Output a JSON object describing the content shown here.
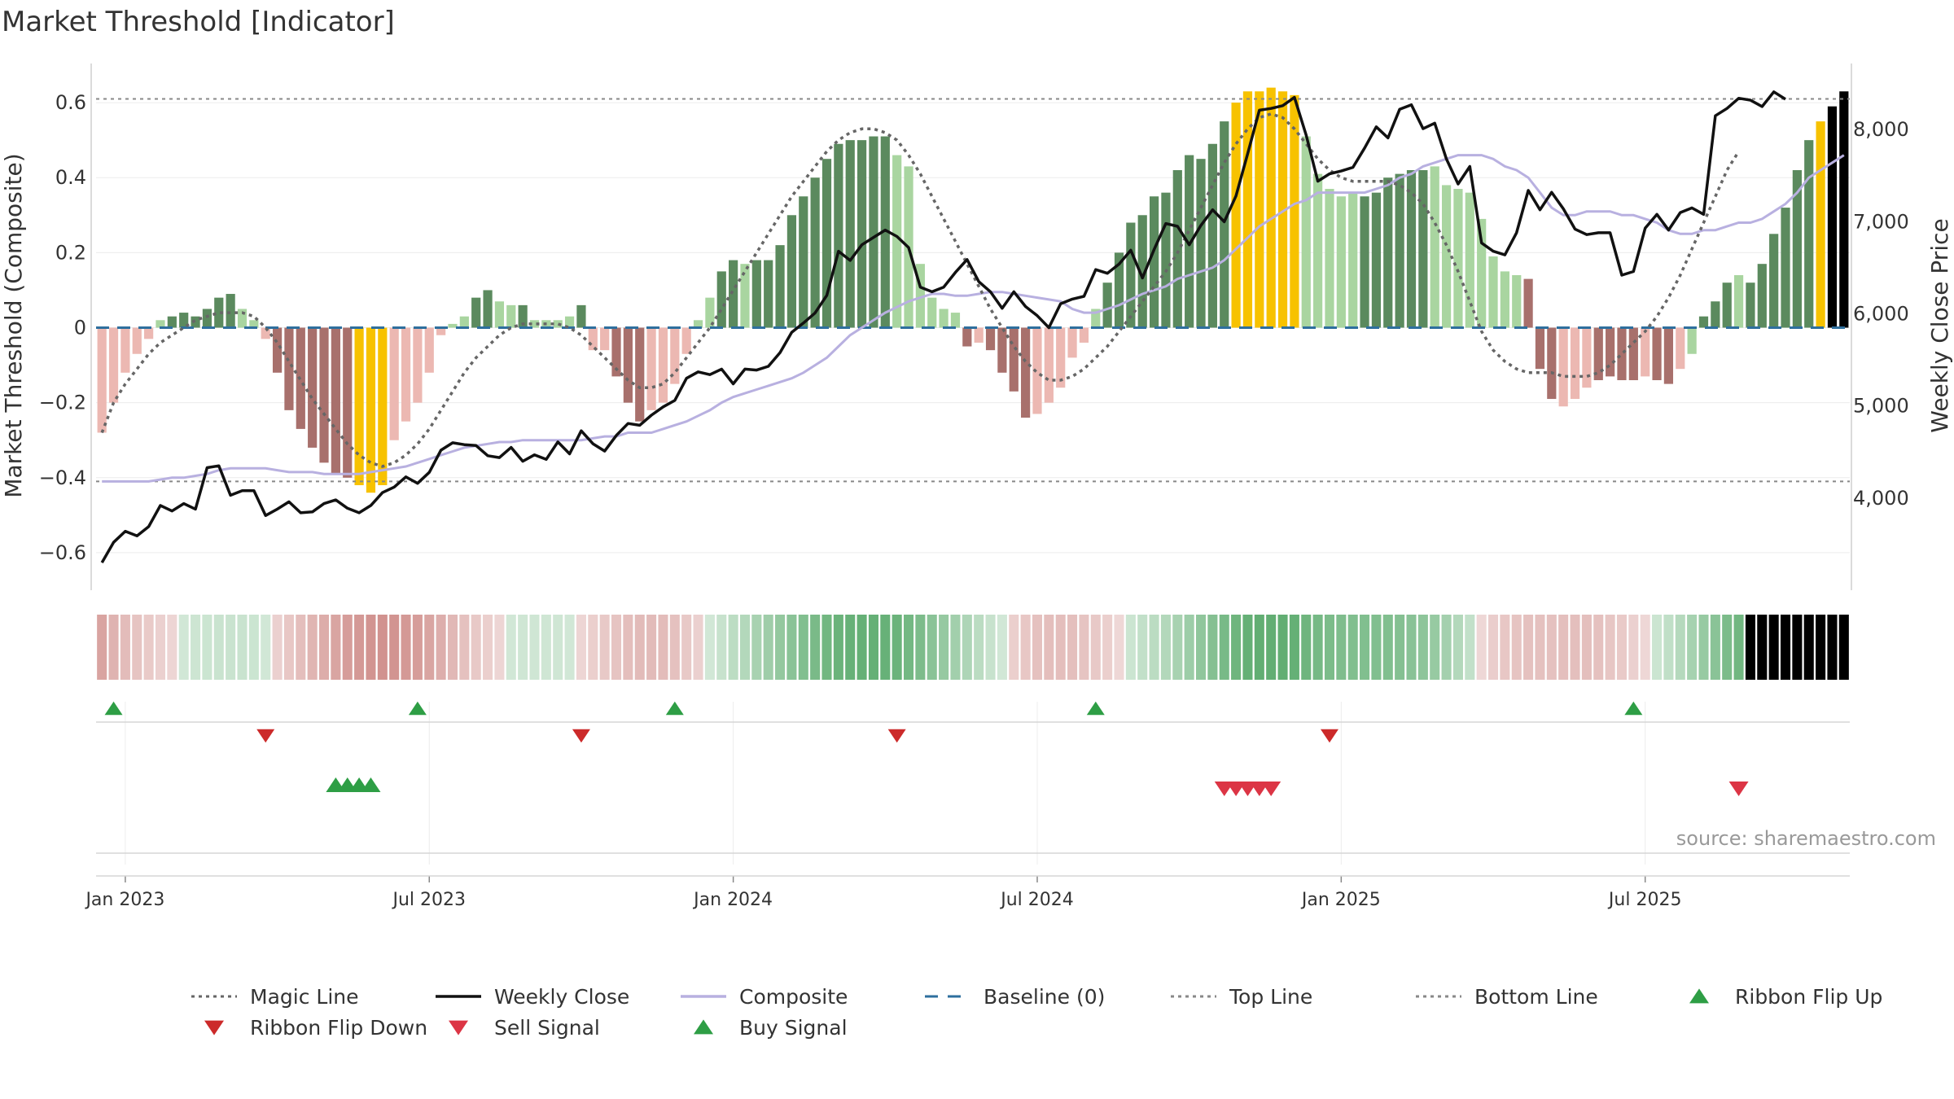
{
  "chart_data": {
    "type": "bar",
    "title": "Market Threshold [Indicator]",
    "ylabel": "Market Threshold (Composite)",
    "y2label": "Weekly Close Price",
    "source": "source: sharemaestro.com",
    "ylim": [
      -0.7,
      0.7
    ],
    "y2lim": [
      3000,
      8700
    ],
    "yticks": [
      {
        "v": 0.6,
        "label": "0.6"
      },
      {
        "v": 0.4,
        "label": "0.4"
      },
      {
        "v": 0.2,
        "label": "0.2"
      },
      {
        "v": 0,
        "label": "0"
      },
      {
        "v": -0.2,
        "label": "−0.2"
      },
      {
        "v": -0.4,
        "label": "−0.4"
      },
      {
        "v": -0.6,
        "label": "−0.6"
      }
    ],
    "y2ticks": [
      {
        "v": 8000,
        "label": "8,000"
      },
      {
        "v": 7000,
        "label": "7,000"
      },
      {
        "v": 6000,
        "label": "6,000"
      },
      {
        "v": 5000,
        "label": "5,000"
      },
      {
        "v": 4000,
        "label": "4,000"
      }
    ],
    "xticks": [
      {
        "week": 2,
        "label": "Jan 2023"
      },
      {
        "week": 28,
        "label": "Jul 2023"
      },
      {
        "week": 54,
        "label": "Jan 2024"
      },
      {
        "week": 80,
        "label": "Jul 2024"
      },
      {
        "week": 106,
        "label": "Jan 2025"
      },
      {
        "week": 132,
        "label": "Jul 2025"
      }
    ],
    "top_line": 0.61,
    "bottom_line": -0.41,
    "grid": true,
    "legend_position": "bottom",
    "colors": {
      "strong_up": "#5b8a5e",
      "weak_up": "#a9d5a0",
      "strong_down": "#a8706c",
      "weak_down": "#ecb8b2",
      "extreme": "#f7c200",
      "close": "#111111",
      "composite": "#b8b0e0",
      "magic": "#666666",
      "baseline": "#2e6f9e",
      "flip_up": "#2e9e45",
      "flip_down": "#cc2a2a",
      "sell": "#dc3545",
      "buy": "#2e9e45"
    },
    "threshold": [
      -0.28,
      -0.2,
      -0.12,
      -0.07,
      -0.03,
      0.02,
      0.03,
      0.04,
      0.03,
      0.05,
      0.08,
      0.09,
      0.05,
      0.02,
      -0.03,
      -0.12,
      -0.22,
      -0.27,
      -0.32,
      -0.36,
      -0.39,
      -0.4,
      -0.42,
      -0.44,
      -0.42,
      -0.3,
      -0.25,
      -0.2,
      -0.12,
      -0.02,
      0.01,
      0.03,
      0.08,
      0.1,
      0.07,
      0.06,
      0.06,
      0.02,
      0.02,
      0.02,
      0.03,
      0.06,
      -0.06,
      -0.06,
      -0.13,
      -0.2,
      -0.25,
      -0.22,
      -0.2,
      -0.15,
      -0.07,
      0.02,
      0.08,
      0.15,
      0.18,
      0.17,
      0.18,
      0.18,
      0.22,
      0.3,
      0.35,
      0.4,
      0.45,
      0.49,
      0.5,
      0.5,
      0.51,
      0.51,
      0.46,
      0.43,
      0.17,
      0.08,
      0.05,
      0.04,
      -0.05,
      -0.04,
      -0.06,
      -0.12,
      -0.17,
      -0.24,
      -0.23,
      -0.2,
      -0.16,
      -0.08,
      -0.04,
      0.05,
      0.12,
      0.2,
      0.28,
      0.3,
      0.35,
      0.36,
      0.42,
      0.46,
      0.45,
      0.49,
      0.55,
      0.6,
      0.63,
      0.63,
      0.64,
      0.63,
      0.62,
      0.51,
      0.41,
      0.37,
      0.35,
      0.36,
      0.35,
      0.36,
      0.4,
      0.41,
      0.42,
      0.42,
      0.43,
      0.38,
      0.37,
      0.36,
      0.29,
      0.19,
      0.15,
      0.14,
      0.13,
      -0.11,
      -0.19,
      -0.21,
      -0.19,
      -0.16,
      -0.14,
      -0.13,
      -0.14,
      -0.14,
      -0.13,
      -0.14,
      -0.15,
      -0.11,
      -0.07,
      0.03,
      0.07,
      0.12,
      0.14,
      0.12,
      0.17,
      0.25,
      0.32,
      0.42,
      0.5,
      0.55,
      0.59,
      0.63
    ],
    "bar_class": [
      "wd",
      "wd",
      "wd",
      "wd",
      "wd",
      "wu",
      "su",
      "su",
      "su",
      "su",
      "su",
      "su",
      "wu",
      "wu",
      "wd",
      "sd",
      "sd",
      "sd",
      "sd",
      "sd",
      "sd",
      "sd",
      "ex",
      "ex",
      "ex",
      "wd",
      "wd",
      "wd",
      "wd",
      "wd",
      "wu",
      "wu",
      "su",
      "su",
      "wu",
      "wu",
      "su",
      "wu",
      "wu",
      "wu",
      "wu",
      "su",
      "wd",
      "wd",
      "sd",
      "sd",
      "sd",
      "wd",
      "wd",
      "wd",
      "wd",
      "wu",
      "wu",
      "su",
      "su",
      "wu",
      "su",
      "su",
      "su",
      "su",
      "su",
      "su",
      "su",
      "su",
      "su",
      "su",
      "su",
      "su",
      "wu",
      "wu",
      "wu",
      "wu",
      "wu",
      "wu",
      "sd",
      "wd",
      "sd",
      "sd",
      "sd",
      "sd",
      "wd",
      "wd",
      "wd",
      "wd",
      "wd",
      "wu",
      "su",
      "su",
      "su",
      "su",
      "su",
      "su",
      "su",
      "su",
      "su",
      "su",
      "su",
      "ex",
      "ex",
      "ex",
      "ex",
      "ex",
      "ex",
      "wu",
      "wu",
      "wu",
      "wu",
      "wu",
      "su",
      "su",
      "su",
      "su",
      "su",
      "su",
      "wu",
      "wu",
      "wu",
      "wu",
      "wu",
      "wu",
      "wu",
      "wu",
      "sd",
      "sd",
      "sd",
      "wd",
      "wd",
      "wd",
      "sd",
      "sd",
      "sd",
      "sd",
      "wd",
      "sd",
      "sd",
      "wd",
      "wu",
      "su",
      "su",
      "su",
      "wu",
      "su",
      "su",
      "su",
      "su",
      "su",
      "su",
      "ex"
    ],
    "close_price": [
      3300,
      3520,
      3640,
      3590,
      3690,
      3920,
      3860,
      3940,
      3880,
      4330,
      4350,
      4030,
      4080,
      4080,
      3810,
      3880,
      3960,
      3840,
      3850,
      3940,
      3980,
      3890,
      3840,
      3920,
      4060,
      4120,
      4230,
      4160,
      4280,
      4520,
      4600,
      4580,
      4570,
      4460,
      4440,
      4550,
      4400,
      4470,
      4420,
      4610,
      4480,
      4730,
      4590,
      4510,
      4680,
      4810,
      4790,
      4900,
      4990,
      5060,
      5300,
      5370,
      5340,
      5400,
      5240,
      5400,
      5390,
      5430,
      5580,
      5800,
      5900,
      6010,
      6200,
      6680,
      6580,
      6750,
      6830,
      6910,
      6840,
      6720,
      6290,
      6240,
      6290,
      6450,
      6590,
      6350,
      6240,
      6060,
      6240,
      6080,
      5980,
      5850,
      6110,
      6160,
      6190,
      6480,
      6440,
      6540,
      6690,
      6390,
      6700,
      6980,
      6950,
      6750,
      6960,
      7130,
      7000,
      7280,
      7740,
      8210,
      8230,
      8260,
      8350,
      7940,
      7440,
      7520,
      7550,
      7590,
      7800,
      8030,
      7910,
      8220,
      8270,
      8010,
      8070,
      7680,
      7410,
      7600,
      6770,
      6680,
      6640,
      6880,
      7340,
      7130,
      7320,
      7140,
      6920,
      6860,
      6880,
      6880,
      6420,
      6460,
      6930,
      7080,
      6910,
      7100,
      7150,
      7080,
      8150,
      8230,
      8340,
      8320,
      8250,
      8410,
      8330
    ],
    "composite": [
      -0.41,
      -0.41,
      -0.41,
      -0.41,
      -0.41,
      -0.405,
      -0.4,
      -0.4,
      -0.395,
      -0.39,
      -0.38,
      -0.375,
      -0.375,
      -0.375,
      -0.375,
      -0.38,
      -0.385,
      -0.385,
      -0.385,
      -0.39,
      -0.39,
      -0.39,
      -0.39,
      -0.385,
      -0.38,
      -0.375,
      -0.37,
      -0.36,
      -0.35,
      -0.34,
      -0.33,
      -0.32,
      -0.315,
      -0.31,
      -0.305,
      -0.305,
      -0.3,
      -0.3,
      -0.3,
      -0.3,
      -0.3,
      -0.3,
      -0.295,
      -0.29,
      -0.29,
      -0.28,
      -0.28,
      -0.28,
      -0.27,
      -0.26,
      -0.25,
      -0.235,
      -0.22,
      -0.2,
      -0.185,
      -0.175,
      -0.165,
      -0.155,
      -0.145,
      -0.135,
      -0.12,
      -0.1,
      -0.08,
      -0.05,
      -0.02,
      0.0,
      0.02,
      0.04,
      0.055,
      0.07,
      0.08,
      0.09,
      0.09,
      0.085,
      0.085,
      0.09,
      0.095,
      0.095,
      0.09,
      0.085,
      0.08,
      0.075,
      0.07,
      0.05,
      0.04,
      0.04,
      0.05,
      0.06,
      0.075,
      0.09,
      0.1,
      0.11,
      0.13,
      0.14,
      0.15,
      0.16,
      0.18,
      0.21,
      0.24,
      0.27,
      0.29,
      0.31,
      0.33,
      0.34,
      0.36,
      0.36,
      0.36,
      0.36,
      0.36,
      0.37,
      0.38,
      0.4,
      0.41,
      0.43,
      0.44,
      0.45,
      0.46,
      0.46,
      0.46,
      0.45,
      0.43,
      0.42,
      0.4,
      0.36,
      0.32,
      0.3,
      0.3,
      0.31,
      0.31,
      0.31,
      0.3,
      0.3,
      0.29,
      0.28,
      0.26,
      0.25,
      0.25,
      0.26,
      0.26,
      0.27,
      0.28,
      0.28,
      0.29,
      0.31,
      0.33,
      0.36,
      0.4,
      0.42,
      0.44,
      0.46
    ],
    "magic_line": [
      -0.28,
      -0.2,
      -0.15,
      -0.11,
      -0.07,
      -0.04,
      -0.02,
      0.0,
      0.02,
      0.03,
      0.04,
      0.04,
      0.04,
      0.03,
      0.0,
      -0.04,
      -0.09,
      -0.14,
      -0.19,
      -0.23,
      -0.27,
      -0.31,
      -0.34,
      -0.36,
      -0.37,
      -0.36,
      -0.34,
      -0.31,
      -0.27,
      -0.22,
      -0.17,
      -0.12,
      -0.08,
      -0.05,
      -0.02,
      0.0,
      0.01,
      0.01,
      0.01,
      0.01,
      0.0,
      -0.02,
      -0.05,
      -0.08,
      -0.11,
      -0.14,
      -0.16,
      -0.16,
      -0.15,
      -0.12,
      -0.08,
      -0.04,
      0.0,
      0.05,
      0.1,
      0.15,
      0.2,
      0.25,
      0.3,
      0.35,
      0.39,
      0.43,
      0.47,
      0.5,
      0.52,
      0.53,
      0.53,
      0.52,
      0.5,
      0.46,
      0.41,
      0.35,
      0.29,
      0.23,
      0.17,
      0.11,
      0.05,
      0.0,
      -0.05,
      -0.09,
      -0.12,
      -0.14,
      -0.14,
      -0.13,
      -0.11,
      -0.08,
      -0.05,
      -0.01,
      0.03,
      0.07,
      0.11,
      0.15,
      0.2,
      0.26,
      0.32,
      0.38,
      0.44,
      0.49,
      0.53,
      0.56,
      0.57,
      0.56,
      0.53,
      0.49,
      0.45,
      0.42,
      0.4,
      0.39,
      0.39,
      0.39,
      0.39,
      0.38,
      0.36,
      0.33,
      0.28,
      0.22,
      0.15,
      0.07,
      -0.01,
      -0.06,
      -0.09,
      -0.11,
      -0.12,
      -0.12,
      -0.12,
      -0.13,
      -0.13,
      -0.13,
      -0.12,
      -0.1,
      -0.07,
      -0.04,
      -0.01,
      0.03,
      0.08,
      0.14,
      0.21,
      0.28,
      0.35,
      0.42,
      0.47
    ],
    "ribbon_flip_up": [
      1,
      27,
      49,
      85,
      131
    ],
    "ribbon_flip_down": [
      14,
      41,
      68,
      105
    ],
    "buy_signal": [
      20,
      21,
      22,
      23
    ],
    "sell_signal": [
      96,
      97,
      98,
      99,
      100,
      140
    ],
    "legend": [
      {
        "key": "magic",
        "label": "Magic Line",
        "style": "dot-line",
        "color": "#666666"
      },
      {
        "key": "close",
        "label": "Weekly Close",
        "style": "solid-line",
        "color": "#111111"
      },
      {
        "key": "composite",
        "label": "Composite",
        "style": "solid-line",
        "color": "#b8b0e0"
      },
      {
        "key": "baseline",
        "label": "Baseline (0)",
        "style": "dash-line",
        "color": "#2e6f9e"
      },
      {
        "key": "top",
        "label": "Top Line",
        "style": "dot-line",
        "color": "#888888"
      },
      {
        "key": "bottom",
        "label": "Bottom Line",
        "style": "dot-line",
        "color": "#888888"
      },
      {
        "key": "flip_up",
        "label": "Ribbon Flip Up",
        "style": "tri-up",
        "color": "#2e9e45"
      },
      {
        "key": "flip_down",
        "label": "Ribbon Flip Down",
        "style": "tri-down",
        "color": "#cc2a2a"
      },
      {
        "key": "sell",
        "label": "Sell Signal",
        "style": "tri-down",
        "color": "#dc3545"
      },
      {
        "key": "buy",
        "label": "Buy Signal",
        "style": "tri-up",
        "color": "#2e9e45"
      }
    ]
  }
}
